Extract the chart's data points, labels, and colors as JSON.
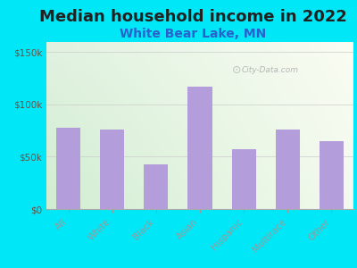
{
  "title": "Median household income in 2022",
  "subtitle": "White Bear Lake, MN",
  "categories": [
    "All",
    "White",
    "Black",
    "Asian",
    "Hispanic",
    "Multirace",
    "Other"
  ],
  "values": [
    78000,
    76000,
    43000,
    117000,
    57000,
    76000,
    65000
  ],
  "bar_color": "#b39ddb",
  "background_outer": "#00e8f8",
  "ylim": [
    0,
    160000
  ],
  "yticks": [
    0,
    50000,
    100000,
    150000
  ],
  "ytick_labels": [
    "$0",
    "$50k",
    "$100k",
    "$150k"
  ],
  "title_fontsize": 13,
  "subtitle_fontsize": 10,
  "watermark": "City-Data.com",
  "title_color": "#212121",
  "subtitle_color": "#2962cc",
  "tick_color": "#6d4c41",
  "gradient_left": "#c8e6c9",
  "gradient_right": "#f5f5dc"
}
